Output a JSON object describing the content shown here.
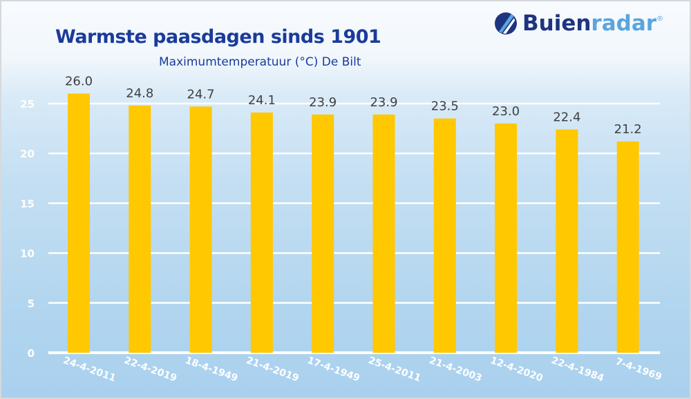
{
  "logo": {
    "part1": "Buien",
    "part2": "radar",
    "mark": "®"
  },
  "chart_data": {
    "type": "bar",
    "title": "Warmste paasdagen sinds 1901",
    "subtitle": "Maximumtemperatuur (°C) De Bilt",
    "categories": [
      "24-4-2011",
      "22-4-2019",
      "18-4-1949",
      "21-4-2019",
      "17-4-1949",
      "25-4-2011",
      "21-4-2003",
      "12-4-2020",
      "22-4-1984",
      "7-4-1969"
    ],
    "values": [
      26.0,
      24.8,
      24.7,
      24.1,
      23.9,
      23.9,
      23.5,
      23.0,
      22.4,
      21.2
    ],
    "data_labels": [
      "26.0",
      "24.8",
      "24.7",
      "24.1",
      "23.9",
      "23.9",
      "23.5",
      "23.0",
      "22.4",
      "21.2"
    ],
    "xlabel": "",
    "ylabel": "",
    "ylim": [
      0,
      25
    ],
    "yticks": [
      "0",
      "5",
      "10",
      "15",
      "20",
      "25"
    ],
    "grid": true,
    "bar_color": "#ffc800",
    "title_color": "#1a3b9b"
  }
}
